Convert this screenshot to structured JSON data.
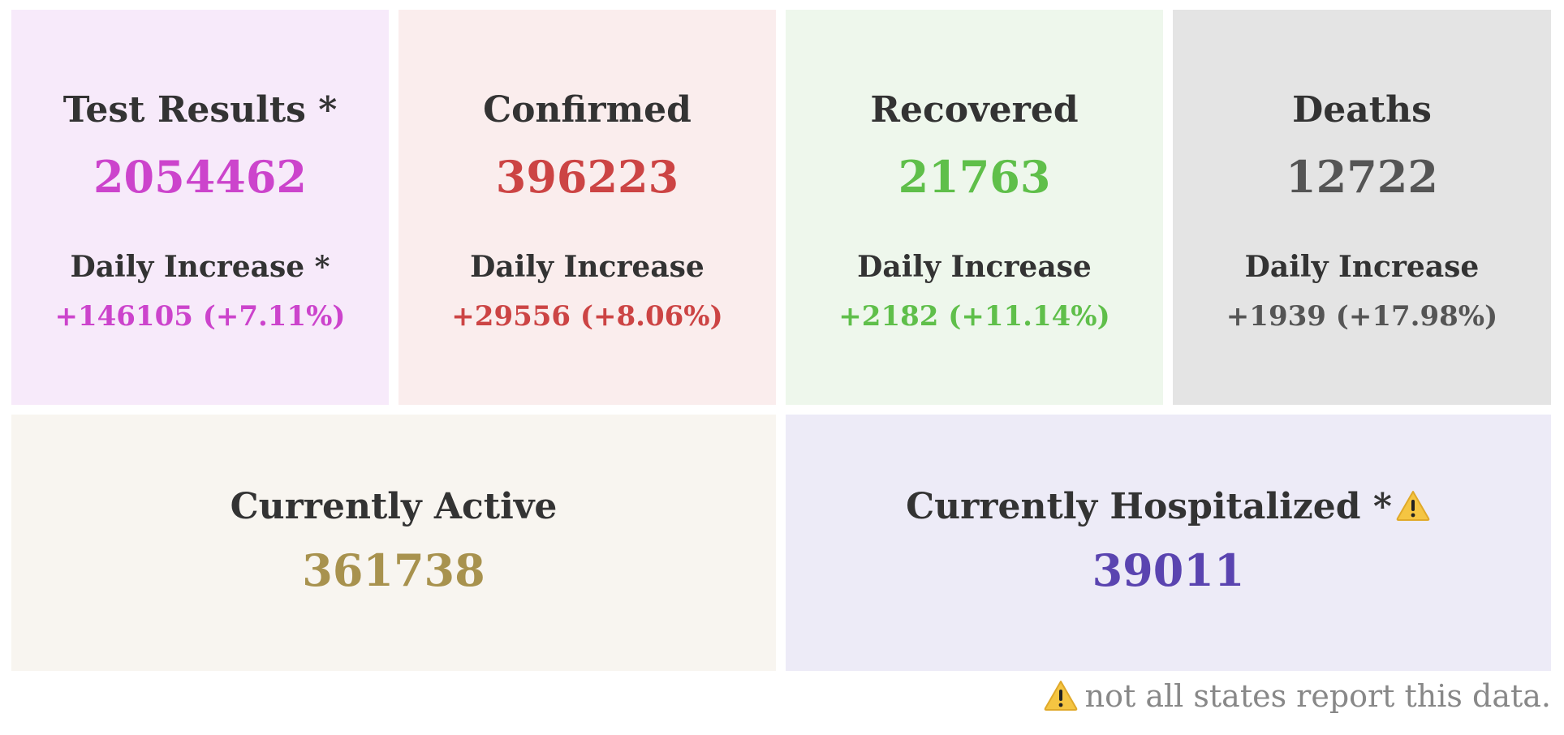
{
  "colors": {
    "tests_bg": "#f7eafa",
    "tests_fg": "#cc44cc",
    "confirmed_bg": "#faeded",
    "confirmed_fg": "#cc4444",
    "recovered_bg": "#eef7ec",
    "recovered_fg": "#5fbf4a",
    "deaths_bg": "#e4e4e4",
    "deaths_fg": "#555555",
    "active_bg": "#f8f5f0",
    "active_fg": "#a8924e",
    "hospitalized_bg": "#edebf7",
    "hospitalized_fg": "#5a44b0",
    "warning_icon": "#f5c542"
  },
  "cards": {
    "tests": {
      "title": "Test Results *",
      "value": "2054462",
      "increase_label": "Daily Increase *",
      "increase_value": "+146105 (+7.11%)"
    },
    "confirmed": {
      "title": "Confirmed",
      "value": "396223",
      "increase_label": "Daily Increase",
      "increase_value": "+29556 (+8.06%)"
    },
    "recovered": {
      "title": "Recovered",
      "value": "21763",
      "increase_label": "Daily Increase",
      "increase_value": "+2182 (+11.14%)"
    },
    "deaths": {
      "title": "Deaths",
      "value": "12722",
      "increase_label": "Daily Increase",
      "increase_value": "+1939 (+17.98%)"
    },
    "active": {
      "title": "Currently Active",
      "value": "361738"
    },
    "hospitalized": {
      "title": "Currently Hospitalized *",
      "icon": "warning-icon",
      "value": "39011"
    }
  },
  "footnote": {
    "icon": "warning-icon",
    "text": "not all states report this data."
  }
}
